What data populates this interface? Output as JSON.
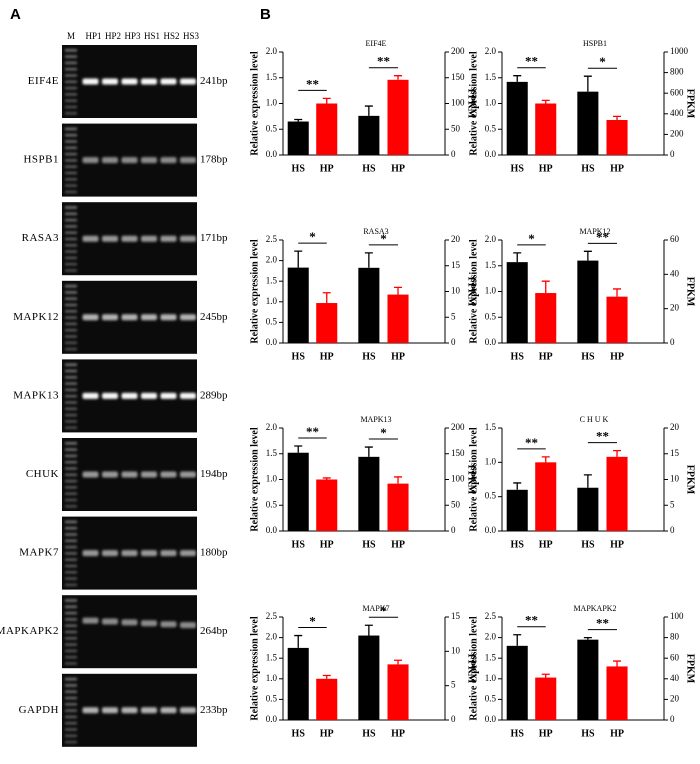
{
  "panel_a": {
    "label": "A",
    "lanes": [
      "M",
      "HP1",
      "HP2",
      "HP3",
      "HS1",
      "HS2",
      "HS3"
    ],
    "rows": [
      {
        "gene": "EIF4E",
        "size": "241bp"
      },
      {
        "gene": "HSPB1",
        "size": "178bp"
      },
      {
        "gene": "RASA3",
        "size": "171bp"
      },
      {
        "gene": "MAPK12",
        "size": "245bp"
      },
      {
        "gene": "MAPK13",
        "size": "289bp"
      },
      {
        "gene": "CHUK",
        "size": "194bp"
      },
      {
        "gene": "MAPK7",
        "size": "180bp"
      },
      {
        "gene": "MAPKAPK2",
        "size": "264bp"
      },
      {
        "gene": "GAPDH",
        "size": "233bp"
      }
    ]
  },
  "panel_b": {
    "label": "B"
  },
  "chart_data": [
    {
      "type": "bar",
      "title": "EIF4E",
      "ylabel": "Relative expression level",
      "y2label": "FPKM",
      "colors": [
        "#000000",
        "#ff0000"
      ],
      "ylim": [
        0,
        2
      ],
      "yticks": [
        {
          "value": 0,
          "label": "0.0"
        },
        0.5,
        {
          "value": 1,
          "label": "1.0"
        },
        1.5,
        {
          "value": 2,
          "label": "2.0"
        }
      ],
      "y2lim": [
        0,
        200
      ],
      "y2ticks": [
        0,
        50,
        100,
        150,
        200
      ],
      "groups": [
        {
          "axis": "y",
          "categories": [
            "HS",
            "HP"
          ],
          "values": [
            0.65,
            1.0
          ],
          "errors": [
            0.04,
            0.1
          ],
          "significance": "**"
        },
        {
          "axis": "y2",
          "categories": [
            "HS",
            "HP"
          ],
          "values": [
            76,
            146
          ],
          "errors": [
            19,
            8
          ],
          "significance": "**"
        }
      ]
    },
    {
      "type": "bar",
      "title": "HSPB1",
      "ylabel": "Relative expression level",
      "y2label": "FPKM",
      "colors": [
        "#000000",
        "#ff0000"
      ],
      "ylim": [
        0,
        2
      ],
      "yticks": [
        {
          "value": 0,
          "label": "0.0"
        },
        0.5,
        {
          "value": 1,
          "label": "1.0"
        },
        1.5,
        {
          "value": 2,
          "label": "2.0"
        }
      ],
      "y2lim": [
        0,
        1000
      ],
      "y2ticks": [
        0,
        200,
        400,
        600,
        800,
        1000
      ],
      "groups": [
        {
          "axis": "y",
          "categories": [
            "HS",
            "HP"
          ],
          "values": [
            1.42,
            1.0
          ],
          "errors": [
            0.12,
            0.06
          ],
          "significance": "**"
        },
        {
          "axis": "y2",
          "categories": [
            "HS",
            "HP"
          ],
          "values": [
            615,
            340
          ],
          "errors": [
            150,
            35
          ],
          "significance": "*"
        }
      ]
    },
    {
      "type": "bar",
      "title": "RASA3",
      "ylabel": "Relative expression level",
      "y2label": "FPKM",
      "colors": [
        "#000000",
        "#ff0000"
      ],
      "ylim": [
        0,
        2.5
      ],
      "yticks": [
        {
          "value": 0,
          "label": "0.0"
        },
        0.5,
        {
          "value": 1,
          "label": "1.0"
        },
        1.5,
        {
          "value": 2,
          "label": "2.0"
        },
        2.5
      ],
      "y2lim": [
        0,
        20
      ],
      "y2ticks": [
        0,
        5,
        10,
        15,
        20
      ],
      "groups": [
        {
          "axis": "y",
          "categories": [
            "HS",
            "HP"
          ],
          "values": [
            1.83,
            0.97
          ],
          "errors": [
            0.4,
            0.25
          ],
          "significance": "*"
        },
        {
          "axis": "y2",
          "categories": [
            "HS",
            "HP"
          ],
          "values": [
            14.6,
            9.4
          ],
          "errors": [
            2.9,
            1.4
          ],
          "significance": "*"
        }
      ]
    },
    {
      "type": "bar",
      "title": "MAPK12",
      "ylabel": "Relative expression level",
      "y2label": "FPKM",
      "colors": [
        "#000000",
        "#ff0000"
      ],
      "ylim": [
        0,
        2
      ],
      "yticks": [
        {
          "value": 0,
          "label": "0.0"
        },
        0.5,
        {
          "value": 1,
          "label": "1.0"
        },
        1.5,
        {
          "value": 2,
          "label": "2.0"
        }
      ],
      "y2lim": [
        0,
        60
      ],
      "y2ticks": [
        0,
        20,
        40,
        60
      ],
      "groups": [
        {
          "axis": "y",
          "categories": [
            "HS",
            "HP"
          ],
          "values": [
            1.57,
            0.97
          ],
          "errors": [
            0.18,
            0.23
          ],
          "significance": "*"
        },
        {
          "axis": "y2",
          "categories": [
            "HS",
            "HP"
          ],
          "values": [
            48,
            27
          ],
          "errors": [
            5.4,
            4.5
          ],
          "significance": "**"
        }
      ]
    },
    {
      "type": "bar",
      "title": "MAPK13",
      "ylabel": "Relative expression level",
      "y2label": "FPKM",
      "colors": [
        "#000000",
        "#ff0000"
      ],
      "ylim": [
        0,
        2
      ],
      "yticks": [
        {
          "value": 0,
          "label": "0.0"
        },
        0.5,
        {
          "value": 1,
          "label": "1.0"
        },
        1.5,
        {
          "value": 2,
          "label": "2.0"
        }
      ],
      "y2lim": [
        0,
        200
      ],
      "y2ticks": [
        0,
        50,
        100,
        150,
        200
      ],
      "groups": [
        {
          "axis": "y",
          "categories": [
            "HS",
            "HP"
          ],
          "values": [
            1.52,
            1.0
          ],
          "errors": [
            0.13,
            0.03
          ],
          "significance": "**"
        },
        {
          "axis": "y2",
          "categories": [
            "HS",
            "HP"
          ],
          "values": [
            144,
            92
          ],
          "errors": [
            19,
            13
          ],
          "significance": "*"
        }
      ]
    },
    {
      "type": "bar",
      "title": "CHUK",
      "ylabel": "Relative expression level",
      "y2label": "FPKM",
      "colors": [
        "#000000",
        "#ff0000"
      ],
      "ylim": [
        0,
        1.5
      ],
      "yticks": [
        {
          "value": 0,
          "label": "0.0"
        },
        0.5,
        {
          "value": 1,
          "label": "1.0"
        },
        1.5
      ],
      "y2lim": [
        0,
        20
      ],
      "y2ticks": [
        0,
        5,
        10,
        15,
        20
      ],
      "groups": [
        {
          "axis": "y",
          "categories": [
            "HS",
            "HP"
          ],
          "values": [
            0.6,
            1.0
          ],
          "errors": [
            0.1,
            0.08
          ],
          "significance": "**"
        },
        {
          "axis": "y2",
          "categories": [
            "HS",
            "HP"
          ],
          "values": [
            8.4,
            14.4
          ],
          "errors": [
            2.5,
            1.2
          ],
          "significance": "**"
        }
      ]
    },
    {
      "type": "bar",
      "title": "MAPK7",
      "ylabel": "Relative expression level",
      "y2label": "FPKM",
      "colors": [
        "#000000",
        "#ff0000"
      ],
      "ylim": [
        0,
        2.5
      ],
      "yticks": [
        {
          "value": 0,
          "label": "0.0"
        },
        0.5,
        {
          "value": 1,
          "label": "1.0"
        },
        1.5,
        {
          "value": 2,
          "label": "2.0"
        },
        2.5
      ],
      "y2lim": [
        0,
        15
      ],
      "y2ticks": [
        0,
        5,
        10,
        15
      ],
      "groups": [
        {
          "axis": "y",
          "categories": [
            "HS",
            "HP"
          ],
          "values": [
            1.75,
            1.0
          ],
          "errors": [
            0.3,
            0.08
          ],
          "significance": "*"
        },
        {
          "axis": "y2",
          "categories": [
            "HS",
            "HP"
          ],
          "values": [
            12.3,
            8.1
          ],
          "errors": [
            1.5,
            0.6
          ],
          "significance": "*"
        }
      ]
    },
    {
      "type": "bar",
      "title": "MAPKAPK2",
      "ylabel": "Relative expression level",
      "y2label": "FPKM",
      "colors": [
        "#000000",
        "#ff0000"
      ],
      "ylim": [
        0,
        2.5
      ],
      "yticks": [
        {
          "value": 0,
          "label": "0.0"
        },
        0.5,
        {
          "value": 1,
          "label": "1.0"
        },
        1.5,
        {
          "value": 2,
          "label": "2.0"
        },
        2.5
      ],
      "y2lim": [
        0,
        100
      ],
      "y2ticks": [
        0,
        20,
        40,
        60,
        80,
        100
      ],
      "groups": [
        {
          "axis": "y",
          "categories": [
            "HS",
            "HP"
          ],
          "values": [
            1.8,
            1.03
          ],
          "errors": [
            0.27,
            0.08
          ],
          "significance": "**"
        },
        {
          "axis": "y2",
          "categories": [
            "HS",
            "HP"
          ],
          "values": [
            78,
            52
          ],
          "errors": [
            2,
            5.2
          ],
          "significance": "**"
        }
      ]
    }
  ]
}
